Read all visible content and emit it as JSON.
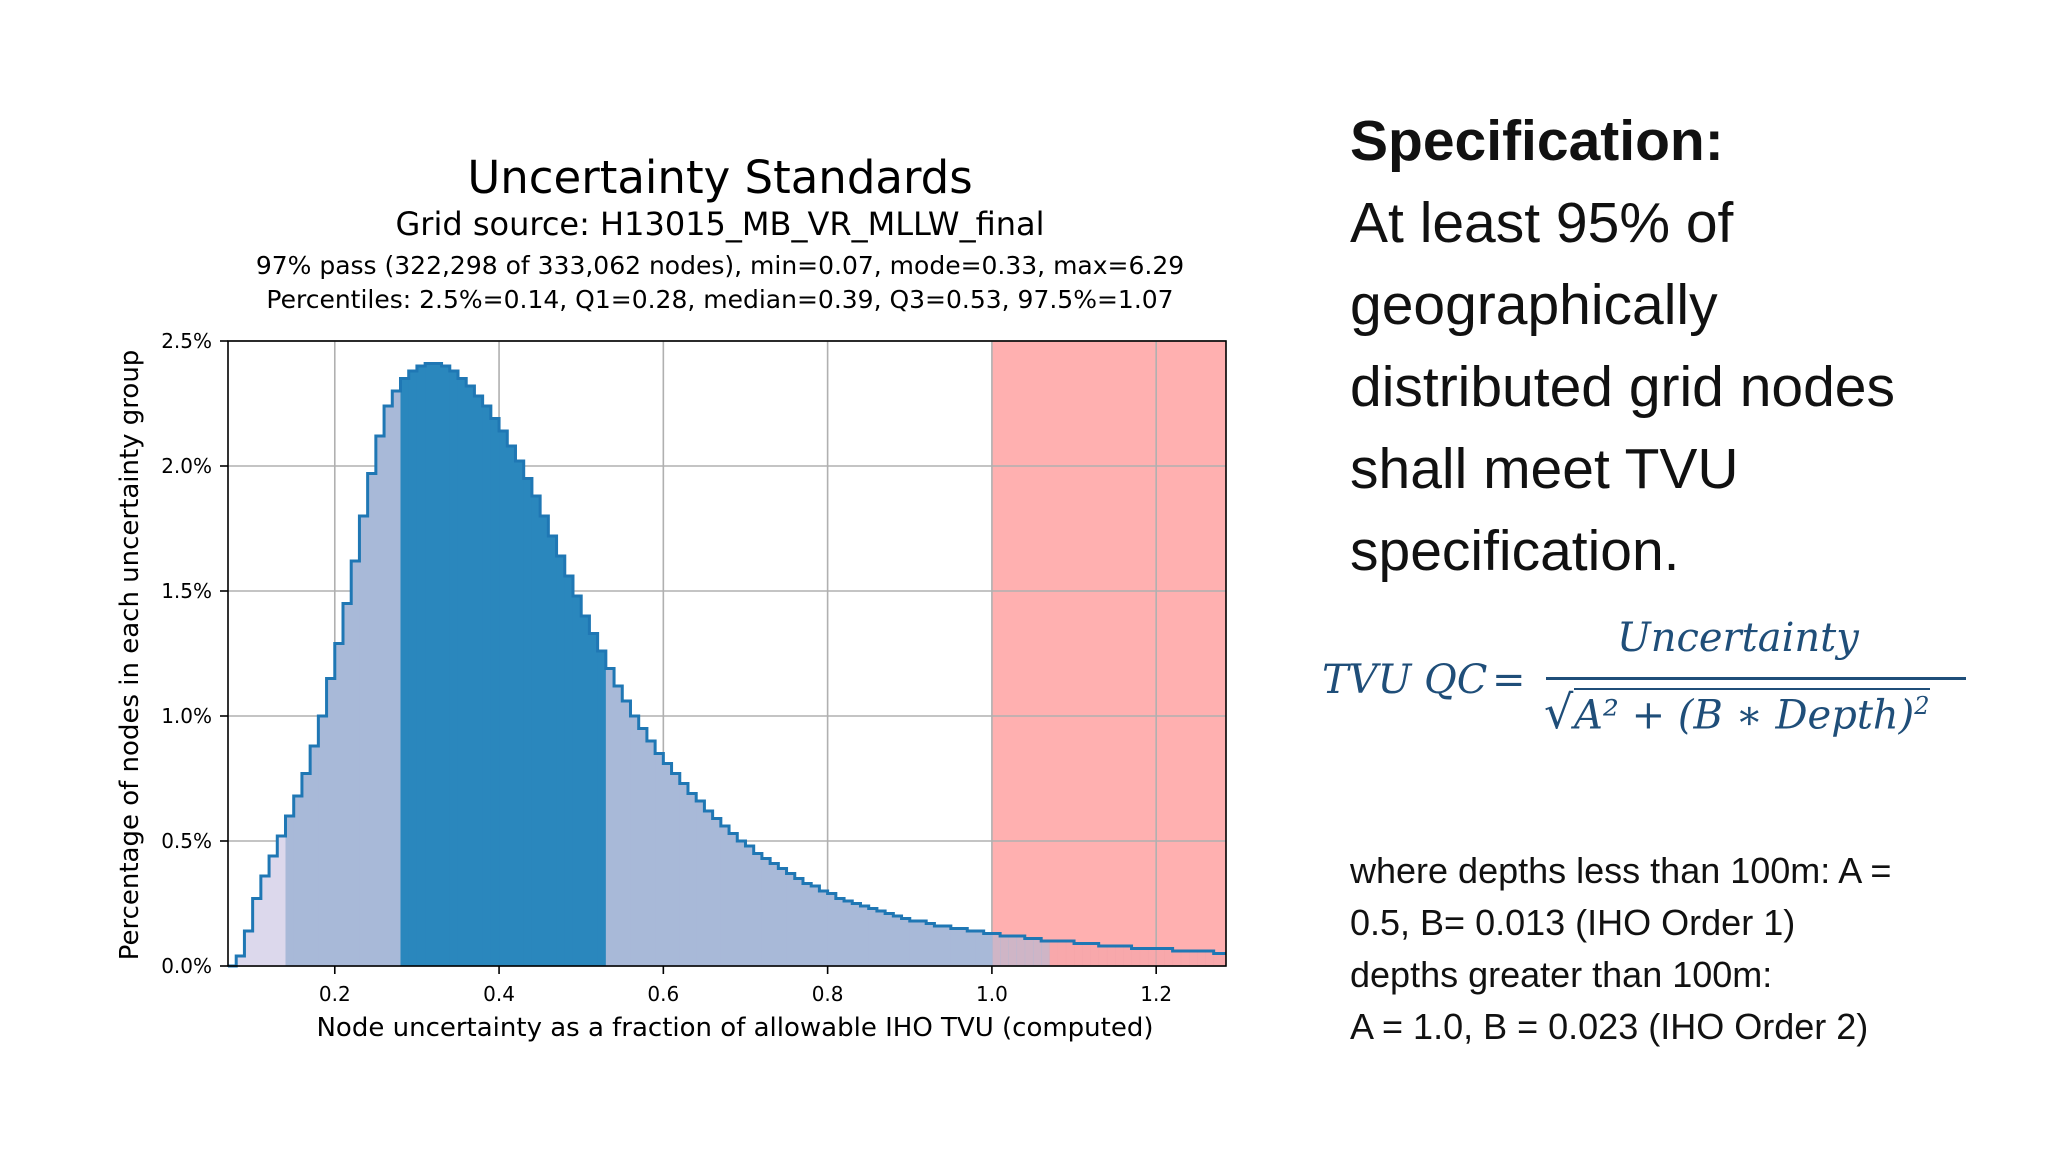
{
  "chart_data": {
    "type": "histogram",
    "title": "Uncertainty Standards",
    "subtitle": "Grid source: H13015_MB_VR_MLLW_final",
    "stats_line": "97% pass (322,298 of 333,062 nodes), min=0.07, mode=0.33, max=6.29",
    "percentiles_line": "Percentiles: 2.5%=0.14, Q1=0.28, median=0.39, Q3=0.53, 97.5%=1.07",
    "xlabel": "Node uncertainty as a fraction of allowable IHO TVU (computed)",
    "ylabel": "Percentage of nodes in each uncertainty group",
    "xlim": [
      0.07,
      1.285
    ],
    "ylim": [
      0.0,
      2.5
    ],
    "x_ticks": [
      0.2,
      0.4,
      0.6,
      0.8,
      1.0,
      1.2
    ],
    "x_tick_labels": [
      "0.2",
      "0.4",
      "0.6",
      "0.8",
      "1.0",
      "1.2"
    ],
    "y_ticks": [
      0.0,
      0.5,
      1.0,
      1.5,
      2.0,
      2.5
    ],
    "y_tick_labels": [
      "0.0%",
      "0.5%",
      "1.0%",
      "1.5%",
      "2.0%",
      "2.5%"
    ],
    "grid": true,
    "bin_width": 0.01,
    "bin_start": 0.07,
    "values": [
      0.0,
      0.04,
      0.14,
      0.27,
      0.36,
      0.44,
      0.52,
      0.6,
      0.68,
      0.77,
      0.88,
      1.0,
      1.15,
      1.29,
      1.45,
      1.62,
      1.8,
      1.97,
      2.12,
      2.24,
      2.3,
      2.35,
      2.38,
      2.4,
      2.41,
      2.41,
      2.4,
      2.38,
      2.35,
      2.32,
      2.28,
      2.24,
      2.19,
      2.14,
      2.08,
      2.02,
      1.95,
      1.88,
      1.8,
      1.72,
      1.64,
      1.56,
      1.48,
      1.4,
      1.33,
      1.26,
      1.19,
      1.12,
      1.06,
      1.0,
      0.95,
      0.9,
      0.85,
      0.81,
      0.77,
      0.73,
      0.69,
      0.66,
      0.62,
      0.59,
      0.56,
      0.53,
      0.5,
      0.48,
      0.45,
      0.43,
      0.41,
      0.39,
      0.37,
      0.35,
      0.33,
      0.32,
      0.3,
      0.29,
      0.27,
      0.26,
      0.25,
      0.24,
      0.23,
      0.22,
      0.21,
      0.2,
      0.19,
      0.18,
      0.18,
      0.17,
      0.16,
      0.16,
      0.15,
      0.15,
      0.14,
      0.14,
      0.13,
      0.13,
      0.12,
      0.12,
      0.12,
      0.11,
      0.11,
      0.1,
      0.1,
      0.1,
      0.1,
      0.09,
      0.09,
      0.09,
      0.08,
      0.08,
      0.08,
      0.08,
      0.07,
      0.07,
      0.07,
      0.07,
      0.07,
      0.06,
      0.06,
      0.06,
      0.06,
      0.06,
      0.05,
      0.05
    ],
    "shaded_ranges": [
      {
        "name": "below 2.5 percentile",
        "from": 0.07,
        "to": 0.14,
        "color": "#dcd8ec"
      },
      {
        "name": "2.5 to Q1",
        "from": 0.14,
        "to": 0.28,
        "color": "#a8b9d8"
      },
      {
        "name": "interquartile range",
        "from": 0.28,
        "to": 0.53,
        "color": "#2a87bd"
      },
      {
        "name": "Q3 to 97.5 percentile",
        "from": 0.53,
        "to": 1.07,
        "color": "#a8b9d8"
      },
      {
        "name": "above 97.5 percentile",
        "from": 1.07,
        "to": 1.285,
        "color": "#f2a3a8"
      }
    ],
    "fail_region": {
      "from": 1.0,
      "to": 1.285,
      "color": "#ffb0b0"
    },
    "outline_color": "#1f77b4"
  },
  "spec": {
    "heading": "Specification:",
    "lines": [
      "At least 95% of",
      "geographically",
      "distributed grid nodes",
      "shall meet TVU",
      "specification."
    ]
  },
  "formula": {
    "lhs": "TVU QC",
    "equals": "=",
    "numerator": "Uncertainty",
    "denominator_main": "A² + (B ∗ Depth)",
    "denominator_exp": "2"
  },
  "notes": {
    "lines": [
      "where depths less than 100m: A =",
      "0.5, B= 0.013 (IHO Order 1)",
      "depths greater than 100m:",
      "A = 1.0, B = 0.023 (IHO Order 2)"
    ]
  }
}
